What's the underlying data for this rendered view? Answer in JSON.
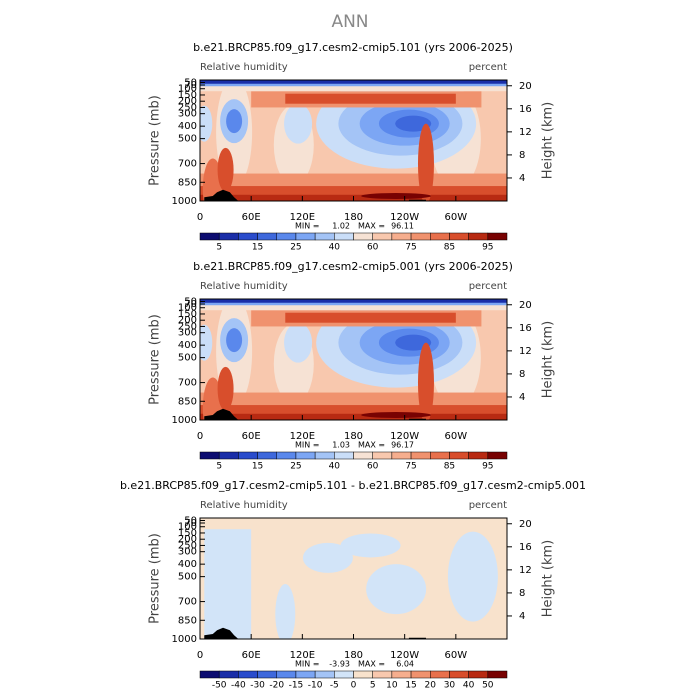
{
  "header": {
    "title": "ANN"
  },
  "chart_data": [
    {
      "type": "contour",
      "title": "b.e21.BRCP85.f09_g17.cesm2-cmip5.101 (yrs 2006-2025)",
      "left_label": "Relative humidity",
      "right_label": "percent",
      "y_label": "Pressure (mb)",
      "y2_label": "Height (km)",
      "xlim": [
        0,
        360
      ],
      "xticks": [
        0,
        {
          "value": 60,
          "label": "60E"
        },
        {
          "value": 120,
          "label": "120E"
        },
        180,
        {
          "value": 240,
          "label": "120W"
        },
        {
          "value": 300,
          "label": "60W"
        }
      ],
      "ylim": [
        1000,
        30
      ],
      "yticks": [
        50,
        70,
        100,
        150,
        200,
        250,
        300,
        400,
        500,
        700,
        850,
        1000
      ],
      "y2lim": [
        0,
        21
      ],
      "y2ticks": [
        4,
        8,
        12,
        16,
        20
      ],
      "min_label": "MIN =",
      "min": 1.02,
      "max_label": "MAX =",
      "max": 96.11,
      "colorbar": {
        "labels": [
          5,
          15,
          25,
          40,
          60,
          75,
          85,
          95
        ],
        "colors": [
          "#0c0c70",
          "#1a2ea8",
          "#2a4ccc",
          "#3e68dc",
          "#5a88ec",
          "#7ca6f4",
          "#a4c4f6",
          "#cadef8",
          "#f6e2d4",
          "#f8c8ae",
          "#f6ae8e",
          "#f0926e",
          "#e8704c",
          "#d84e2c",
          "#b82a12",
          "#780202"
        ]
      }
    },
    {
      "type": "contour",
      "title": "b.e21.BRCP85.f09_g17.cesm2-cmip5.001 (yrs 2006-2025)",
      "left_label": "Relative humidity",
      "right_label": "percent",
      "y_label": "Pressure (mb)",
      "y2_label": "Height (km)",
      "xlim": [
        0,
        360
      ],
      "xticks": [
        0,
        {
          "value": 60,
          "label": "60E"
        },
        {
          "value": 120,
          "label": "120E"
        },
        180,
        {
          "value": 240,
          "label": "120W"
        },
        {
          "value": 300,
          "label": "60W"
        }
      ],
      "ylim": [
        1000,
        30
      ],
      "yticks": [
        50,
        70,
        100,
        150,
        200,
        250,
        300,
        400,
        500,
        700,
        850,
        1000
      ],
      "y2lim": [
        0,
        21
      ],
      "y2ticks": [
        4,
        8,
        12,
        16,
        20
      ],
      "min_label": "MIN =",
      "min": 1.03,
      "max_label": "MAX =",
      "max": 96.17,
      "colorbar": {
        "labels": [
          5,
          15,
          25,
          40,
          60,
          75,
          85,
          95
        ],
        "colors": [
          "#0c0c70",
          "#1a2ea8",
          "#2a4ccc",
          "#3e68dc",
          "#5a88ec",
          "#7ca6f4",
          "#a4c4f6",
          "#cadef8",
          "#f6e2d4",
          "#f8c8ae",
          "#f6ae8e",
          "#f0926e",
          "#e8704c",
          "#d84e2c",
          "#b82a12",
          "#780202"
        ]
      }
    },
    {
      "type": "contour-diff",
      "title": "b.e21.BRCP85.f09_g17.cesm2-cmip5.101 - b.e21.BRCP85.f09_g17.cesm2-cmip5.001",
      "left_label": "Relative humidity",
      "right_label": "percent",
      "y_label": "Pressure (mb)",
      "y2_label": "Height (km)",
      "xlim": [
        0,
        360
      ],
      "xticks": [
        0,
        {
          "value": 60,
          "label": "60E"
        },
        {
          "value": 120,
          "label": "120E"
        },
        180,
        {
          "value": 240,
          "label": "120W"
        },
        {
          "value": 300,
          "label": "60W"
        }
      ],
      "ylim": [
        1000,
        30
      ],
      "yticks": [
        50,
        70,
        100,
        150,
        200,
        250,
        300,
        400,
        500,
        700,
        850,
        1000
      ],
      "y2lim": [
        0,
        21
      ],
      "y2ticks": [
        4,
        8,
        12,
        16,
        20
      ],
      "min_label": "MIN =",
      "min": -3.93,
      "max_label": "MAX =",
      "max": 6.04,
      "colorbar": {
        "labels": [
          -50,
          -40,
          -30,
          -20,
          -15,
          -10,
          -5,
          0,
          5,
          10,
          15,
          20,
          30,
          40,
          50
        ],
        "colors": [
          "#0c0c70",
          "#1a2ea8",
          "#2a4ccc",
          "#3e68dc",
          "#5a88ec",
          "#7ca6f4",
          "#a4c4f6",
          "#d2e4f8",
          "#f8e2cc",
          "#f8c8ae",
          "#f6ae8e",
          "#f0926e",
          "#e8704c",
          "#d84e2c",
          "#b82a12",
          "#780202"
        ]
      }
    }
  ]
}
